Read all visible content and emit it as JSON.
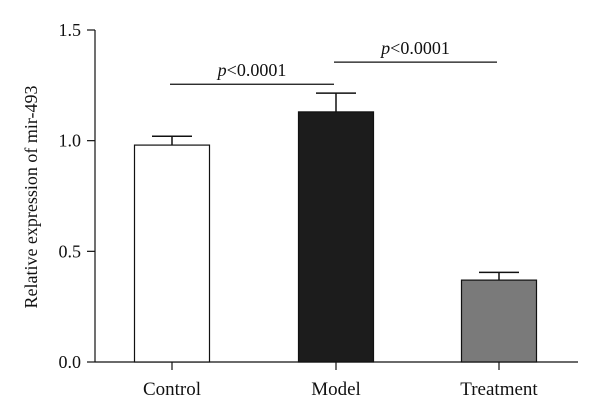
{
  "chart_data": {
    "type": "bar",
    "title": "",
    "xlabel": "",
    "ylabel": "Relative expression of mir-493",
    "ylim": [
      0,
      1.5
    ],
    "yticks": [
      "0.0",
      "0.5",
      "1.0",
      "1.5"
    ],
    "categories": [
      "Control",
      "Model",
      "Treatment"
    ],
    "values": [
      0.98,
      1.13,
      0.37
    ],
    "errors": [
      0.04,
      0.085,
      0.035
    ],
    "colors": [
      "#ffffff",
      "#1c1c1c",
      "#7a7a7a"
    ],
    "edge_color": "#111111",
    "grid": false,
    "annotations": [
      {
        "from": "Control",
        "to": "Model",
        "y": 1.255,
        "p_symbol": "p",
        "text": "<0.0001"
      },
      {
        "from": "Model",
        "to": "Treatment",
        "y": 1.355,
        "p_symbol": "p",
        "text": "<0.0001"
      }
    ]
  }
}
